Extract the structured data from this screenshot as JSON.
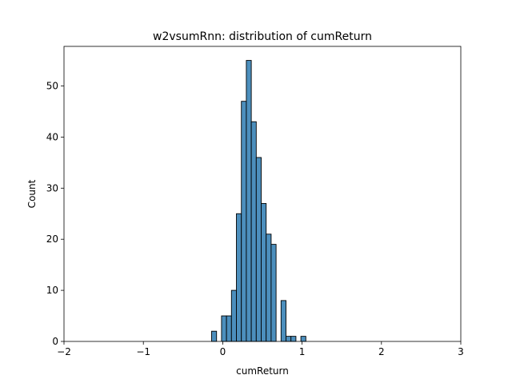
{
  "chart_data": {
    "type": "bar",
    "title": "w2vsumRnn: distribution of cumReturn",
    "xlabel": "cumReturn",
    "ylabel": "Count",
    "xlim": [
      -2,
      3
    ],
    "ylim": [
      0,
      57.75
    ],
    "xticks": [
      -2,
      -1,
      0,
      1,
      2,
      3
    ],
    "xtick_labels": [
      "−2",
      "−1",
      "0",
      "1",
      "2",
      "3"
    ],
    "yticks": [
      0,
      10,
      20,
      30,
      40,
      50
    ],
    "ytick_labels": [
      "0",
      "10",
      "20",
      "30",
      "40",
      "50"
    ],
    "bin_start": -0.14,
    "bin_width": 0.0625,
    "counts": [
      2,
      0,
      5,
      5,
      10,
      25,
      47,
      55,
      43,
      36,
      27,
      21,
      19,
      0,
      8,
      1,
      1,
      0,
      1
    ],
    "grid": false,
    "bar_color": "#4c8fbd",
    "edge_color": "#000000"
  }
}
